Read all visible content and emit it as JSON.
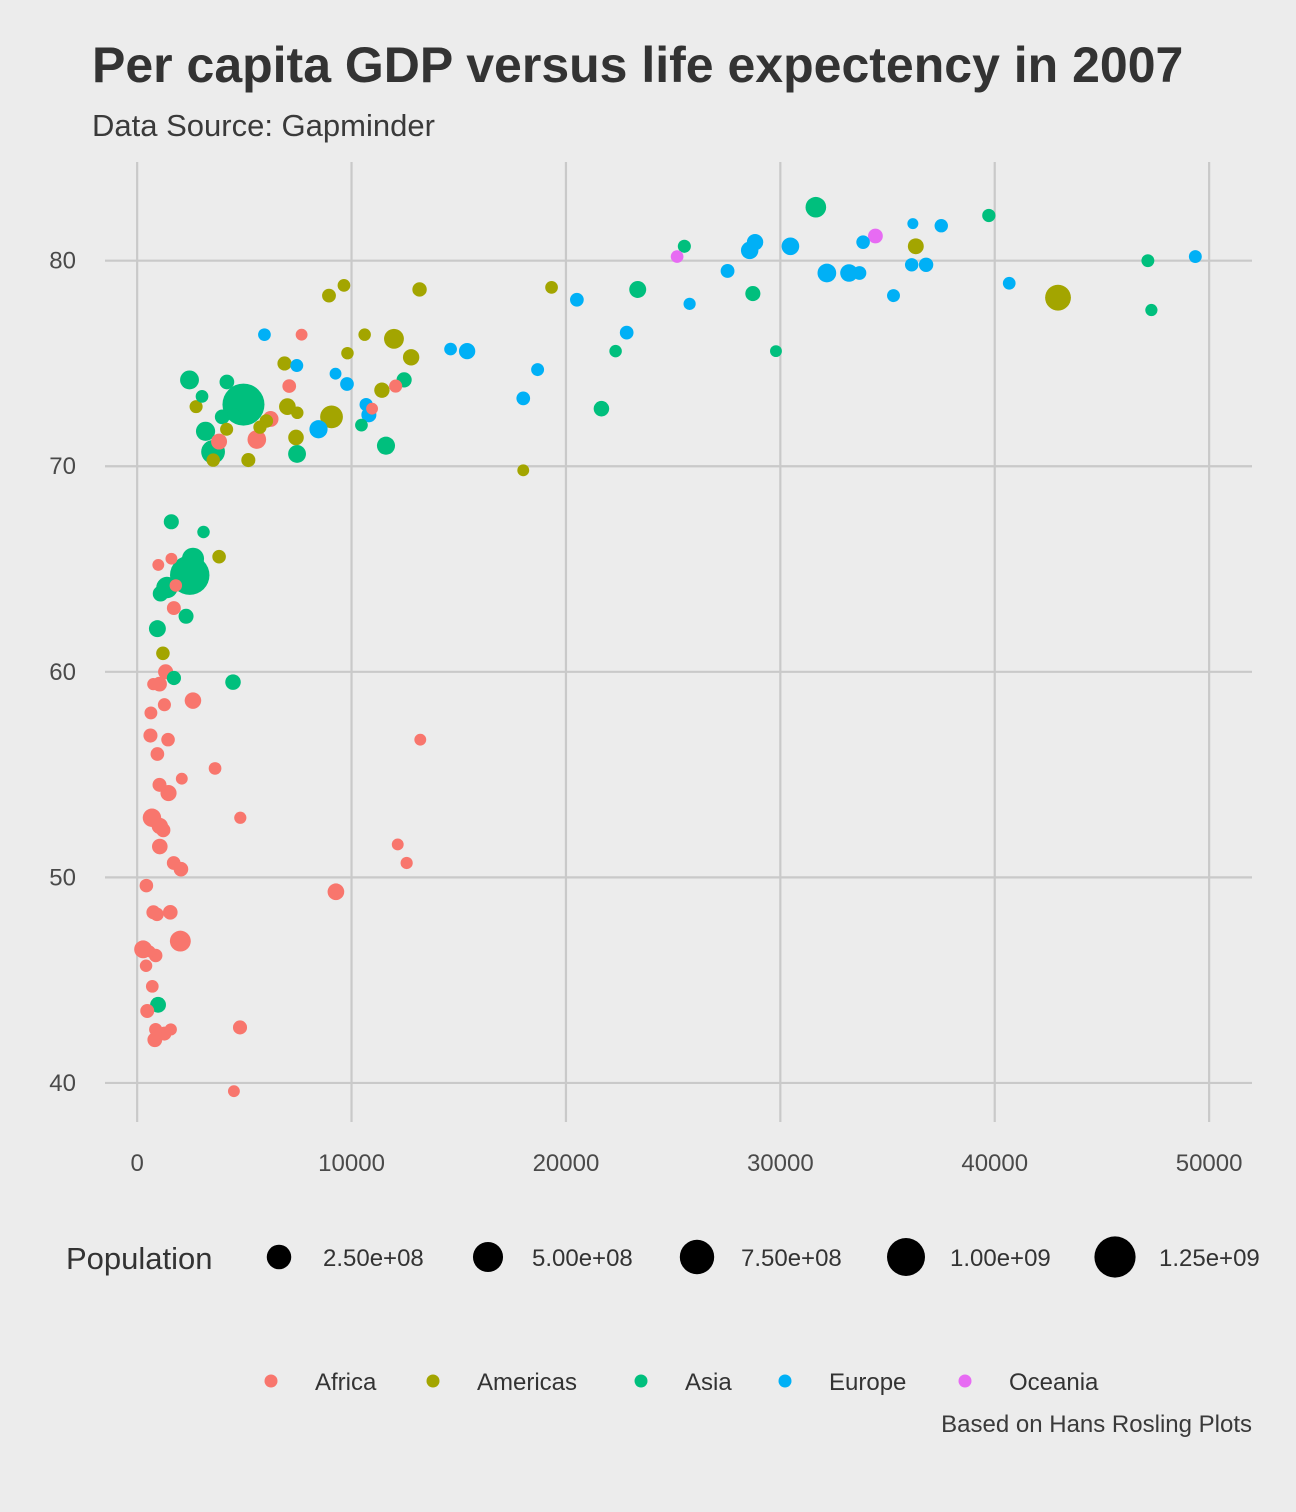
{
  "chart_data": {
    "type": "scatter",
    "title": "Per capita GDP versus life expectency in 2007",
    "subtitle": "Data Source: Gapminder",
    "caption": "Based on Hans Rosling Plots",
    "xlabel": "",
    "ylabel": "",
    "xlim": [
      -1500,
      52000
    ],
    "ylim": [
      38.1,
      84.8
    ],
    "x_ticks": [
      0,
      10000,
      20000,
      30000,
      40000,
      50000
    ],
    "x_tick_labels": [
      "0",
      "10000",
      "20000",
      "30000",
      "40000",
      "50000"
    ],
    "y_ticks": [
      40,
      50,
      60,
      70,
      80
    ],
    "y_tick_labels": [
      "40",
      "50",
      "60",
      "70",
      "80"
    ],
    "grid": true,
    "size_legend": {
      "title": "Population",
      "values": [
        250000000,
        500000000,
        750000000,
        1000000000,
        1250000000
      ],
      "labels": [
        "2.50e+08",
        "5.00e+08",
        "7.50e+08",
        "1.00e+09",
        "1.25e+09"
      ]
    },
    "color_legend": {
      "entries": [
        {
          "name": "Africa",
          "color": "#F8766D"
        },
        {
          "name": "Americas",
          "color": "#A3A500"
        },
        {
          "name": "Asia",
          "color": "#00BF7D"
        },
        {
          "name": "Europe",
          "color": "#00B0F6"
        },
        {
          "name": "Oceania",
          "color": "#E76BF3"
        }
      ]
    },
    "legend_position": "bottom",
    "series": [
      {
        "name": "Africa",
        "color": "#F8766D",
        "points": [
          [
            6223,
            72.3,
            33
          ],
          [
            4797,
            42.7,
            13
          ],
          [
            1441,
            56.7,
            9
          ],
          [
            12570,
            50.7,
            2
          ],
          [
            1217,
            52.3,
            15
          ],
          [
            430,
            49.6,
            9
          ],
          [
            2042,
            50.4,
            18
          ],
          [
            706,
            44.7,
            4
          ],
          [
            1704,
            50.7,
            10
          ],
          [
            986,
            65.2,
            1
          ],
          [
            278,
            46.5,
            65
          ],
          [
            3633,
            55.3,
            4
          ],
          [
            1545,
            48.3,
            18
          ],
          [
            2082,
            54.8,
            1
          ],
          [
            5581,
            71.3,
            80
          ],
          [
            12154,
            51.6,
            1
          ],
          [
            641,
            58.0,
            5
          ],
          [
            690,
            52.9,
            76
          ],
          [
            13206,
            56.7,
            1
          ],
          [
            753,
            59.4,
            2
          ],
          [
            1328,
            60.0,
            23
          ],
          [
            943,
            56.0,
            10
          ],
          [
            580,
            46.4,
            1
          ],
          [
            1463,
            54.1,
            36
          ],
          [
            1569,
            42.6,
            2
          ],
          [
            415,
            45.7,
            3
          ],
          [
            12057,
            73.9,
            6
          ],
          [
            1045,
            59.4,
            19
          ],
          [
            759,
            48.3,
            13
          ],
          [
            1042,
            54.5,
            12
          ],
          [
            1803,
            64.2,
            3
          ],
          [
            10957,
            72.8,
            1
          ],
          [
            3820,
            71.2,
            34
          ],
          [
            824,
            42.1,
            20
          ],
          [
            4811,
            52.9,
            2
          ],
          [
            620,
            56.9,
            13
          ],
          [
            2014,
            46.9,
            135
          ],
          [
            7670,
            76.4,
            1
          ],
          [
            863,
            46.2,
            9
          ],
          [
            1598,
            65.5,
            1
          ],
          [
            1712,
            63.1,
            12
          ],
          [
            862,
            42.6,
            6
          ],
          [
            926,
            48.2,
            9
          ],
          [
            9270,
            49.3,
            44
          ],
          [
            2602,
            58.6,
            42
          ],
          [
            4513,
            39.6,
            1
          ],
          [
            1056,
            52.5,
            39
          ],
          [
            1271,
            58.4,
            6
          ],
          [
            7093,
            73.9,
            10
          ],
          [
            1056,
            51.5,
            29
          ],
          [
            1271,
            42.4,
            12
          ],
          [
            470,
            43.5,
            12
          ]
        ]
      },
      {
        "name": "Americas",
        "color": "#A3A500",
        "points": [
          [
            12779,
            75.3,
            40
          ],
          [
            3822,
            65.6,
            9
          ],
          [
            9066,
            72.4,
            190
          ],
          [
            36319,
            80.7,
            33
          ],
          [
            13172,
            78.6,
            16
          ],
          [
            7007,
            72.9,
            44
          ],
          [
            9645,
            78.8,
            4
          ],
          [
            8948,
            78.3,
            11
          ],
          [
            6025,
            72.2,
            9
          ],
          [
            6873,
            75.0,
            14
          ],
          [
            5728,
            71.9,
            7
          ],
          [
            5186,
            70.3,
            13
          ],
          [
            2749,
            72.9,
            0
          ],
          [
            3548,
            70.3,
            8
          ],
          [
            11978,
            76.2,
            108
          ],
          [
            2749,
            72.9,
            6
          ],
          [
            9809,
            75.5,
            3
          ],
          [
            4173,
            71.8,
            6
          ],
          [
            7409,
            71.4,
            29
          ],
          [
            19329,
            78.7,
            4
          ],
          [
            18009,
            69.8,
            1
          ],
          [
            7468,
            72.6,
            3
          ],
          [
            42952,
            78.2,
            301
          ],
          [
            10611,
            76.4,
            3
          ],
          [
            11416,
            73.7,
            26
          ],
          [
            1202,
            60.9,
            9
          ]
        ]
      },
      {
        "name": "Asia",
        "color": "#00BF7D",
        "points": [
          [
            975,
            43.8,
            32
          ],
          [
            29796,
            75.6,
            1
          ],
          [
            1391,
            64.1,
            150
          ],
          [
            1714,
            59.7,
            14
          ],
          [
            4959,
            73.0,
            1319
          ],
          [
            39725,
            82.2,
            7
          ],
          [
            2452,
            64.7,
            1110
          ],
          [
            3541,
            70.7,
            224
          ],
          [
            11606,
            71.0,
            69
          ],
          [
            4471,
            59.5,
            28
          ],
          [
            25523,
            80.7,
            6
          ],
          [
            31656,
            82.6,
            127
          ],
          [
            4519,
            72.5,
            6
          ],
          [
            1593,
            67.3,
            23
          ],
          [
            23348,
            78.6,
            49
          ],
          [
            47307,
            77.6,
            2
          ],
          [
            10461,
            72.0,
            4
          ],
          [
            12452,
            74.2,
            24
          ],
          [
            3095,
            66.8,
            3
          ],
          [
            944,
            62.1,
            48
          ],
          [
            1091,
            63.8,
            29
          ],
          [
            22316,
            75.6,
            3
          ],
          [
            2605,
            65.5,
            169
          ],
          [
            3190,
            71.7,
            92
          ],
          [
            21655,
            72.8,
            28
          ],
          [
            47143,
            80.0,
            5
          ],
          [
            3970,
            72.4,
            20
          ],
          [
            4185,
            74.1,
            19
          ],
          [
            28718,
            78.4,
            23
          ],
          [
            7458,
            70.6,
            65
          ],
          [
            2442,
            74.2,
            85
          ],
          [
            3025,
            73.4,
            4
          ],
          [
            2281,
            62.7,
            22
          ]
        ]
      },
      {
        "name": "Europe",
        "color": "#00B0F6",
        "points": [
          [
            5937,
            76.4,
            4
          ],
          [
            36126,
            79.8,
            8
          ],
          [
            33692,
            79.4,
            10
          ],
          [
            7446,
            74.9,
            5
          ],
          [
            10681,
            73.0,
            7
          ],
          [
            14619,
            75.7,
            4
          ],
          [
            22833,
            76.5,
            10
          ],
          [
            35278,
            78.3,
            5
          ],
          [
            33207,
            79.3,
            5
          ],
          [
            30470,
            80.7,
            61
          ],
          [
            32170,
            79.4,
            82
          ],
          [
            27538,
            79.5,
            11
          ],
          [
            18009,
            73.3,
            10
          ],
          [
            36181,
            81.8,
            0
          ],
          [
            40676,
            78.9,
            4
          ],
          [
            28570,
            80.5,
            58
          ],
          [
            9253,
            74.5,
            1
          ],
          [
            36798,
            79.8,
            16
          ],
          [
            49357,
            80.2,
            5
          ],
          [
            15390,
            75.6,
            39
          ],
          [
            20510,
            78.1,
            10
          ],
          [
            10808,
            72.5,
            22
          ],
          [
            9787,
            74.0,
            10
          ],
          [
            18678,
            74.7,
            5
          ],
          [
            25768,
            77.9,
            2
          ],
          [
            28821,
            80.9,
            40
          ],
          [
            33860,
            80.9,
            9
          ],
          [
            37506,
            81.7,
            8
          ],
          [
            8458,
            71.8,
            71
          ],
          [
            33203,
            79.4,
            60
          ]
        ]
      },
      {
        "name": "Oceania",
        "color": "#E76BF3",
        "points": [
          [
            34435,
            81.2,
            20
          ],
          [
            25185,
            80.2,
            4
          ]
        ]
      }
    ]
  }
}
